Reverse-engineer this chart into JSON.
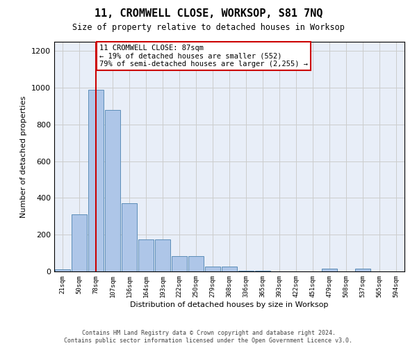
{
  "title": "11, CROMWELL CLOSE, WORKSOP, S81 7NQ",
  "subtitle": "Size of property relative to detached houses in Worksop",
  "xlabel": "Distribution of detached houses by size in Worksop",
  "ylabel": "Number of detached properties",
  "footer": "Contains HM Land Registry data © Crown copyright and database right 2024.\nContains public sector information licensed under the Open Government Licence v3.0.",
  "bin_labels": [
    "21sqm",
    "50sqm",
    "78sqm",
    "107sqm",
    "136sqm",
    "164sqm",
    "193sqm",
    "222sqm",
    "250sqm",
    "279sqm",
    "308sqm",
    "336sqm",
    "365sqm",
    "393sqm",
    "422sqm",
    "451sqm",
    "479sqm",
    "508sqm",
    "537sqm",
    "565sqm",
    "594sqm"
  ],
  "bar_values": [
    10,
    310,
    990,
    880,
    370,
    175,
    175,
    85,
    85,
    25,
    25,
    5,
    5,
    0,
    0,
    0,
    15,
    0,
    15,
    0,
    0
  ],
  "bar_color": "#aec6e8",
  "bar_edge_color": "#5b8db8",
  "grid_color": "#cccccc",
  "bg_color": "#e8eef8",
  "annotation_box_color": "#cc0000",
  "property_line_color": "#cc0000",
  "property_bin_index": 2,
  "annotation_text": "11 CROMWELL CLOSE: 87sqm\n← 19% of detached houses are smaller (552)\n79% of semi-detached houses are larger (2,255) →",
  "ylim": [
    0,
    1250
  ],
  "yticks": [
    0,
    200,
    400,
    600,
    800,
    1000,
    1200
  ]
}
